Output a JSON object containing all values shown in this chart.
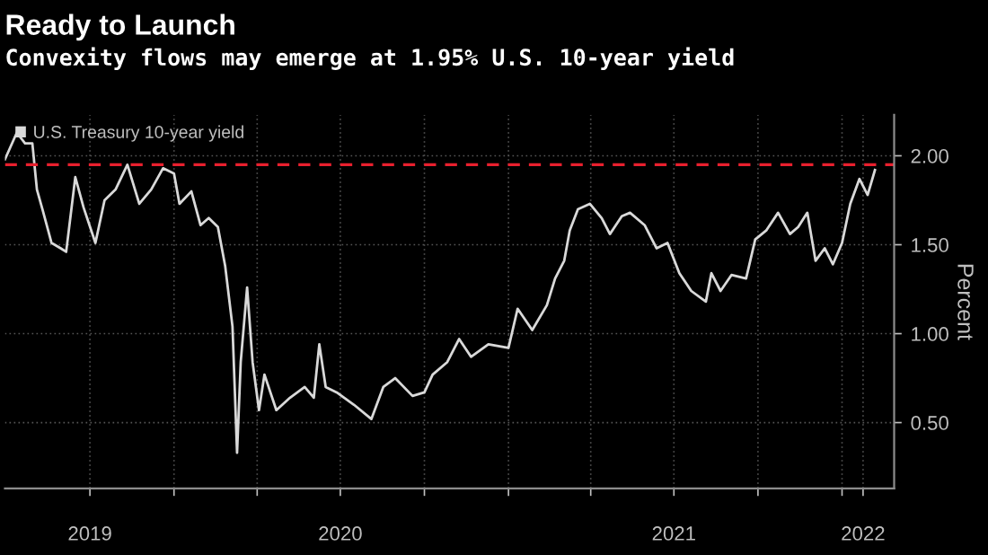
{
  "chart_data": {
    "type": "line",
    "title": "Ready to Launch",
    "subtitle": "Convexity flows may emerge at 1.95% U.S. 10-year yield",
    "ylabel": "Percent",
    "x": [
      "2019-06-30",
      "2019-07-13",
      "2019-07-22",
      "2019-07-30",
      "2019-08-04",
      "2019-08-10",
      "2019-08-20",
      "2019-08-30",
      "2019-09-05",
      "2019-09-15",
      "2019-09-24",
      "2019-10-07",
      "2019-10-17",
      "2019-10-29",
      "2019-11-11",
      "2019-11-24",
      "2019-12-07",
      "2019-12-20",
      "2020-01-01",
      "2020-01-07",
      "2020-01-20",
      "2020-01-30",
      "2020-02-08",
      "2020-02-18",
      "2020-02-26",
      "2020-03-05",
      "2020-03-10",
      "2020-03-14",
      "2020-03-21",
      "2020-03-27",
      "2020-04-03",
      "2020-04-09",
      "2020-04-22",
      "2020-05-07",
      "2020-05-23",
      "2020-06-02",
      "2020-06-08",
      "2020-06-15",
      "2020-06-27",
      "2020-07-16",
      "2020-08-04",
      "2020-08-17",
      "2020-08-30",
      "2020-09-18",
      "2020-10-01",
      "2020-10-10",
      "2020-10-26",
      "2020-11-08",
      "2020-11-21",
      "2020-12-10",
      "2021-01-01",
      "2021-01-11",
      "2021-01-27",
      "2021-02-12",
      "2021-02-21",
      "2021-03-03",
      "2021-03-09",
      "2021-03-18",
      "2021-03-31",
      "2021-04-13",
      "2021-04-22",
      "2021-05-05",
      "2021-05-14",
      "2021-05-30",
      "2021-06-12",
      "2021-06-24",
      "2021-07-07",
      "2021-07-20",
      "2021-08-05",
      "2021-08-11",
      "2021-08-21",
      "2021-09-02",
      "2021-09-18",
      "2021-09-28",
      "2021-10-10",
      "2021-10-23",
      "2021-11-05",
      "2021-11-14",
      "2021-11-24",
      "2021-12-03",
      "2021-12-13",
      "2021-12-22",
      "2022-01-01",
      "2022-01-10",
      "2022-01-20",
      "2022-01-29",
      "2022-02-06"
    ],
    "series": [
      {
        "name": "U.S. Treasury 10-year yield",
        "color": "#d9d9d9",
        "values": [
          1.98,
          2.13,
          2.07,
          2.07,
          1.81,
          1.7,
          1.51,
          1.48,
          1.46,
          1.88,
          1.71,
          1.51,
          1.75,
          1.81,
          1.95,
          1.73,
          1.81,
          1.93,
          1.9,
          1.73,
          1.8,
          1.61,
          1.65,
          1.6,
          1.38,
          1.04,
          0.33,
          0.84,
          1.26,
          0.84,
          0.57,
          0.77,
          0.57,
          0.64,
          0.7,
          0.64,
          0.94,
          0.7,
          0.67,
          0.6,
          0.52,
          0.7,
          0.75,
          0.65,
          0.67,
          0.77,
          0.84,
          0.97,
          0.87,
          0.94,
          0.92,
          1.14,
          1.02,
          1.16,
          1.31,
          1.41,
          1.58,
          1.7,
          1.73,
          1.65,
          1.56,
          1.66,
          1.68,
          1.61,
          1.48,
          1.51,
          1.34,
          1.24,
          1.18,
          1.34,
          1.24,
          1.33,
          1.31,
          1.53,
          1.58,
          1.68,
          1.56,
          1.6,
          1.68,
          1.41,
          1.48,
          1.39,
          1.51,
          1.73,
          1.87,
          1.78,
          1.92
        ]
      }
    ],
    "xlim": [
      "2019-06-30",
      "2022-02-27"
    ],
    "xticks": [
      {
        "value": "2019-10-01",
        "label": "2019"
      },
      {
        "value": "2020-01-01",
        "label": null
      },
      {
        "value": "2020-04-01",
        "label": null
      },
      {
        "value": "2020-07-01",
        "label": "2020"
      },
      {
        "value": "2020-10-01",
        "label": null
      },
      {
        "value": "2021-01-01",
        "label": null
      },
      {
        "value": "2021-04-01",
        "label": null
      },
      {
        "value": "2021-07-01",
        "label": "2021"
      },
      {
        "value": "2021-10-01",
        "label": null
      },
      {
        "value": "2022-01-01",
        "label": null
      },
      {
        "value": "2022-01-24",
        "label": "2022"
      }
    ],
    "ylim": [
      0.13,
      2.23
    ],
    "yticks": [
      {
        "value": 0.5,
        "label": "0.50"
      },
      {
        "value": 1.0,
        "label": "1.00"
      },
      {
        "value": 1.5,
        "label": "1.50"
      },
      {
        "value": 2.0,
        "label": "2.00"
      }
    ],
    "ref_lines": [
      {
        "axis": "y",
        "value": 1.95,
        "color": "#e8202e",
        "line_style": "dashed"
      }
    ],
    "grid": true,
    "legend": "top left",
    "line_style": "solid",
    "marker": "none"
  }
}
